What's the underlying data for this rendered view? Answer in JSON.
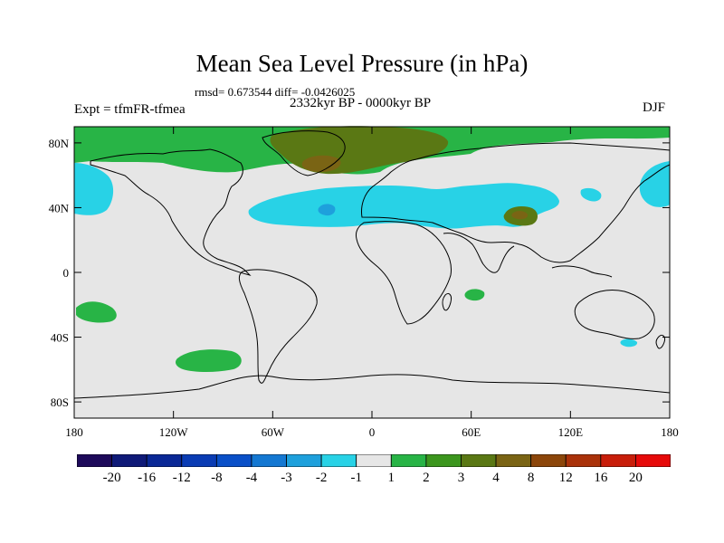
{
  "title": "Mean Sea Level Pressure (in hPa)",
  "stats": "rmsd= 0.673544 diff= -0.0426025",
  "period": "2332kyr BP - 0000kyr BP",
  "experiment": "Expt = tfmFR-tfmea",
  "season": "DJF",
  "axes": {
    "y_ticks": [
      "80N",
      "40N",
      "0",
      "40S",
      "80S"
    ],
    "y_values": [
      80,
      40,
      0,
      -40,
      -80
    ],
    "x_ticks": [
      "180",
      "120W",
      "60W",
      "0",
      "60E",
      "120E",
      "180"
    ],
    "x_values": [
      -180,
      -120,
      -60,
      0,
      60,
      120,
      180
    ]
  },
  "colorbar": {
    "labels": [
      "-20",
      "-16",
      "-12",
      "-8",
      "-4",
      "-3",
      "-2",
      "-1",
      "1",
      "2",
      "3",
      "4",
      "8",
      "12",
      "16",
      "20"
    ],
    "colors": [
      "#1e0a5a",
      "#0f1a78",
      "#0a2896",
      "#0a3cb4",
      "#0a50c8",
      "#1478d2",
      "#1ea0dc",
      "#28d2e6",
      "#e6e6e6",
      "#28b446",
      "#3c961e",
      "#5a7814",
      "#7a6414",
      "#8c460a",
      "#aa320a",
      "#c81e0a",
      "#e60a0a"
    ]
  },
  "colors": {
    "neutral": "#e6e6e6",
    "cyan": "#28d2e6",
    "blue": "#1ea0dc",
    "green": "#28b446",
    "darkgreen": "#5a7814",
    "brown": "#7a6414"
  }
}
